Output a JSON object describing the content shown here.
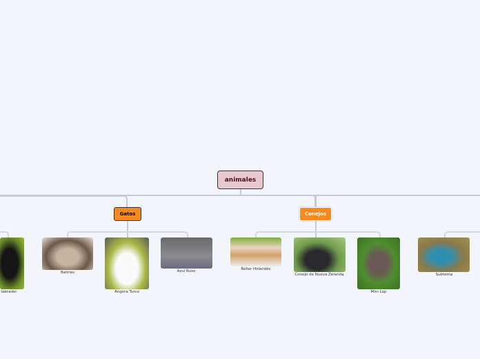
{
  "root": {
    "label": "animales",
    "fill": "#e8c8cf",
    "border": "#6b1a2a"
  },
  "branches": [
    {
      "label": "Gatos",
      "fill": "#f58a1f",
      "text_color": "#000000",
      "children": [
        {
          "label": "Balines"
        },
        {
          "label": "Angora Turco"
        },
        {
          "label": "Azul Ruso"
        }
      ]
    },
    {
      "label": "Conejos",
      "fill": "#f58a1f",
      "text_color": "#ffffff",
      "children": [
        {
          "label": "Belier Holandés"
        },
        {
          "label": "Conejo de Nueva Zelanda"
        },
        {
          "label": "Mini Lop"
        }
      ]
    }
  ],
  "partial_nodes": [
    {
      "label": "labrador"
    },
    {
      "label": "Subtema"
    }
  ]
}
